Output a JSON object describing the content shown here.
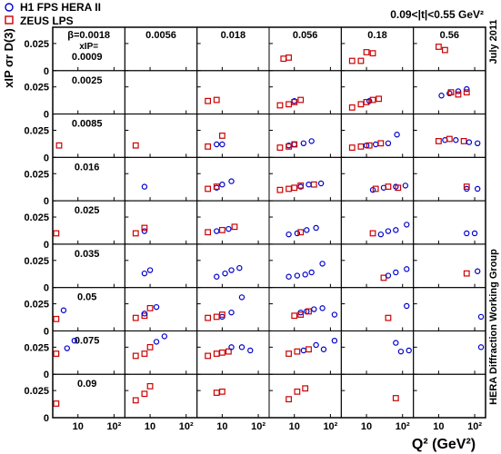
{
  "legend": {
    "items": [
      {
        "label": "H1 FPS HERA II",
        "marker": "circle",
        "color": "#0000cc"
      },
      {
        "label": "ZEUS LPS",
        "marker": "square",
        "color": "#cc0000"
      }
    ]
  },
  "t_range_label": "0.09<|t|<0.55 GeV²",
  "y_axis_title": "xIP σr D(3)",
  "x_axis_title": "Q² (GeV²)",
  "side_labels": {
    "date": "July 2011",
    "group": "HERA Diffraction Working Group"
  },
  "corner_labels": {
    "beta_label": "β=",
    "xip_label": "xIP="
  },
  "chart_data": {
    "type": "scatter",
    "grid": {
      "rows": 9,
      "cols": 6
    },
    "xscale": "log",
    "xlim": [
      2,
      200
    ],
    "ylim": [
      0,
      0.04
    ],
    "xticks": [
      10,
      100
    ],
    "xtick_labels": [
      "10",
      "10²"
    ],
    "yticks": [
      0,
      0.025
    ],
    "ytick_labels": [
      "0",
      "0.025"
    ],
    "beta": [
      "0.0018",
      "0.0056",
      "0.018",
      "0.056",
      "0.18",
      "0.56"
    ],
    "xip": [
      "0.0009",
      "0.0025",
      "0.0085",
      "0.016",
      "0.025",
      "0.035",
      "0.05",
      "0.075",
      "0.09"
    ],
    "series_names": [
      "H1 FPS HERA II",
      "ZEUS LPS"
    ],
    "series_colors": [
      "#0000cc",
      "#cc0000"
    ],
    "points": [
      {
        "r": 0,
        "c": 3,
        "s": 1,
        "x": 5,
        "y": 0.011
      },
      {
        "r": 0,
        "c": 3,
        "s": 1,
        "x": 7,
        "y": 0.012
      },
      {
        "r": 0,
        "c": 4,
        "s": 1,
        "x": 4,
        "y": 0.009
      },
      {
        "r": 0,
        "c": 4,
        "s": 1,
        "x": 7,
        "y": 0.009
      },
      {
        "r": 0,
        "c": 4,
        "s": 1,
        "x": 10,
        "y": 0.017
      },
      {
        "r": 0,
        "c": 4,
        "s": 1,
        "x": 15,
        "y": 0.016
      },
      {
        "r": 0,
        "c": 5,
        "s": 1,
        "x": 10,
        "y": 0.022
      },
      {
        "r": 0,
        "c": 5,
        "s": 1,
        "x": 15,
        "y": 0.019
      },
      {
        "r": 1,
        "c": 2,
        "s": 1,
        "x": 4,
        "y": 0.012
      },
      {
        "r": 1,
        "c": 2,
        "s": 1,
        "x": 7,
        "y": 0.013
      },
      {
        "r": 1,
        "c": 3,
        "s": 1,
        "x": 4,
        "y": 0.008
      },
      {
        "r": 1,
        "c": 3,
        "s": 1,
        "x": 7,
        "y": 0.009
      },
      {
        "r": 1,
        "c": 3,
        "s": 0,
        "x": 10,
        "y": 0.012
      },
      {
        "r": 1,
        "c": 3,
        "s": 1,
        "x": 10,
        "y": 0.011
      },
      {
        "r": 1,
        "c": 3,
        "s": 1,
        "x": 15,
        "y": 0.013
      },
      {
        "r": 1,
        "c": 4,
        "s": 1,
        "x": 4,
        "y": 0.006
      },
      {
        "r": 1,
        "c": 4,
        "s": 1,
        "x": 7,
        "y": 0.009
      },
      {
        "r": 1,
        "c": 4,
        "s": 1,
        "x": 10,
        "y": 0.011
      },
      {
        "r": 1,
        "c": 4,
        "s": 0,
        "x": 12,
        "y": 0.012
      },
      {
        "r": 1,
        "c": 4,
        "s": 1,
        "x": 15,
        "y": 0.013
      },
      {
        "r": 1,
        "c": 4,
        "s": 1,
        "x": 22,
        "y": 0.014
      },
      {
        "r": 1,
        "c": 5,
        "s": 0,
        "x": 12,
        "y": 0.017
      },
      {
        "r": 1,
        "c": 5,
        "s": 0,
        "x": 20,
        "y": 0.019
      },
      {
        "r": 1,
        "c": 5,
        "s": 1,
        "x": 22,
        "y": 0.02
      },
      {
        "r": 1,
        "c": 5,
        "s": 0,
        "x": 35,
        "y": 0.021
      },
      {
        "r": 1,
        "c": 5,
        "s": 1,
        "x": 35,
        "y": 0.018
      },
      {
        "r": 1,
        "c": 5,
        "s": 0,
        "x": 60,
        "y": 0.023
      },
      {
        "r": 1,
        "c": 5,
        "s": 1,
        "x": 60,
        "y": 0.02
      },
      {
        "r": 2,
        "c": 0,
        "s": 1,
        "x": 3,
        "y": 0.011
      },
      {
        "r": 2,
        "c": 1,
        "s": 1,
        "x": 4,
        "y": 0.011
      },
      {
        "r": 2,
        "c": 2,
        "s": 1,
        "x": 4,
        "y": 0.01
      },
      {
        "r": 2,
        "c": 2,
        "s": 0,
        "x": 7,
        "y": 0.012
      },
      {
        "r": 2,
        "c": 2,
        "s": 1,
        "x": 10,
        "y": 0.02
      },
      {
        "r": 2,
        "c": 2,
        "s": 0,
        "x": 10,
        "y": 0.012
      },
      {
        "r": 2,
        "c": 3,
        "s": 1,
        "x": 4,
        "y": 0.009
      },
      {
        "r": 2,
        "c": 3,
        "s": 0,
        "x": 7,
        "y": 0.011
      },
      {
        "r": 2,
        "c": 3,
        "s": 1,
        "x": 7,
        "y": 0.01
      },
      {
        "r": 2,
        "c": 3,
        "s": 0,
        "x": 10,
        "y": 0.012
      },
      {
        "r": 2,
        "c": 3,
        "s": 1,
        "x": 10,
        "y": 0.012
      },
      {
        "r": 2,
        "c": 3,
        "s": 0,
        "x": 18,
        "y": 0.013
      },
      {
        "r": 2,
        "c": 3,
        "s": 0,
        "x": 30,
        "y": 0.015
      },
      {
        "r": 2,
        "c": 4,
        "s": 1,
        "x": 4,
        "y": 0.009
      },
      {
        "r": 2,
        "c": 4,
        "s": 1,
        "x": 7,
        "y": 0.01
      },
      {
        "r": 2,
        "c": 4,
        "s": 0,
        "x": 10,
        "y": 0.011
      },
      {
        "r": 2,
        "c": 4,
        "s": 1,
        "x": 12,
        "y": 0.011
      },
      {
        "r": 2,
        "c": 4,
        "s": 0,
        "x": 18,
        "y": 0.012
      },
      {
        "r": 2,
        "c": 4,
        "s": 1,
        "x": 25,
        "y": 0.013
      },
      {
        "r": 2,
        "c": 4,
        "s": 0,
        "x": 40,
        "y": 0.013
      },
      {
        "r": 2,
        "c": 4,
        "s": 0,
        "x": 70,
        "y": 0.021
      },
      {
        "r": 2,
        "c": 5,
        "s": 1,
        "x": 10,
        "y": 0.015
      },
      {
        "r": 2,
        "c": 5,
        "s": 0,
        "x": 15,
        "y": 0.016
      },
      {
        "r": 2,
        "c": 5,
        "s": 1,
        "x": 20,
        "y": 0.017
      },
      {
        "r": 2,
        "c": 5,
        "s": 0,
        "x": 30,
        "y": 0.016
      },
      {
        "r": 2,
        "c": 5,
        "s": 1,
        "x": 50,
        "y": 0.015
      },
      {
        "r": 2,
        "c": 5,
        "s": 0,
        "x": 70,
        "y": 0.014
      },
      {
        "r": 2,
        "c": 5,
        "s": 0,
        "x": 120,
        "y": 0.013
      },
      {
        "r": 3,
        "c": 1,
        "s": 0,
        "x": 7,
        "y": 0.013
      },
      {
        "r": 3,
        "c": 2,
        "s": 1,
        "x": 4,
        "y": 0.011
      },
      {
        "r": 3,
        "c": 2,
        "s": 0,
        "x": 7,
        "y": 0.012
      },
      {
        "r": 3,
        "c": 2,
        "s": 1,
        "x": 7,
        "y": 0.013
      },
      {
        "r": 3,
        "c": 2,
        "s": 0,
        "x": 10,
        "y": 0.015
      },
      {
        "r": 3,
        "c": 2,
        "s": 0,
        "x": 18,
        "y": 0.018
      },
      {
        "r": 3,
        "c": 3,
        "s": 1,
        "x": 4,
        "y": 0.01
      },
      {
        "r": 3,
        "c": 3,
        "s": 1,
        "x": 7,
        "y": 0.011
      },
      {
        "r": 3,
        "c": 3,
        "s": 1,
        "x": 10,
        "y": 0.012
      },
      {
        "r": 3,
        "c": 3,
        "s": 0,
        "x": 15,
        "y": 0.013
      },
      {
        "r": 3,
        "c": 3,
        "s": 1,
        "x": 15,
        "y": 0.014
      },
      {
        "r": 3,
        "c": 3,
        "s": 0,
        "x": 25,
        "y": 0.015
      },
      {
        "r": 3,
        "c": 3,
        "s": 1,
        "x": 35,
        "y": 0.015
      },
      {
        "r": 3,
        "c": 3,
        "s": 0,
        "x": 55,
        "y": 0.016
      },
      {
        "r": 3,
        "c": 4,
        "s": 0,
        "x": 15,
        "y": 0.01
      },
      {
        "r": 3,
        "c": 4,
        "s": 1,
        "x": 18,
        "y": 0.011
      },
      {
        "r": 3,
        "c": 4,
        "s": 0,
        "x": 30,
        "y": 0.012
      },
      {
        "r": 3,
        "c": 4,
        "s": 1,
        "x": 40,
        "y": 0.013
      },
      {
        "r": 3,
        "c": 4,
        "s": 0,
        "x": 65,
        "y": 0.013
      },
      {
        "r": 3,
        "c": 4,
        "s": 1,
        "x": 75,
        "y": 0.012
      },
      {
        "r": 3,
        "c": 4,
        "s": 0,
        "x": 120,
        "y": 0.014
      },
      {
        "r": 3,
        "c": 5,
        "s": 0,
        "x": 60,
        "y": 0.011
      },
      {
        "r": 3,
        "c": 5,
        "s": 1,
        "x": 60,
        "y": 0.013
      },
      {
        "r": 3,
        "c": 5,
        "s": 0,
        "x": 120,
        "y": 0.011
      },
      {
        "r": 4,
        "c": 0,
        "s": 1,
        "x": 2.5,
        "y": 0.01
      },
      {
        "r": 4,
        "c": 1,
        "s": 1,
        "x": 4,
        "y": 0.01
      },
      {
        "r": 4,
        "c": 1,
        "s": 0,
        "x": 7,
        "y": 0.012
      },
      {
        "r": 4,
        "c": 1,
        "s": 1,
        "x": 7,
        "y": 0.015
      },
      {
        "r": 4,
        "c": 2,
        "s": 1,
        "x": 4,
        "y": 0.011
      },
      {
        "r": 4,
        "c": 2,
        "s": 0,
        "x": 7,
        "y": 0.012
      },
      {
        "r": 4,
        "c": 2,
        "s": 1,
        "x": 10,
        "y": 0.013
      },
      {
        "r": 4,
        "c": 2,
        "s": 0,
        "x": 15,
        "y": 0.014
      },
      {
        "r": 4,
        "c": 2,
        "s": 1,
        "x": 22,
        "y": 0.016
      },
      {
        "r": 4,
        "c": 3,
        "s": 0,
        "x": 7,
        "y": 0.009
      },
      {
        "r": 4,
        "c": 3,
        "s": 0,
        "x": 12,
        "y": 0.01
      },
      {
        "r": 4,
        "c": 3,
        "s": 1,
        "x": 15,
        "y": 0.011
      },
      {
        "r": 4,
        "c": 3,
        "s": 0,
        "x": 22,
        "y": 0.013
      },
      {
        "r": 4,
        "c": 3,
        "s": 0,
        "x": 40,
        "y": 0.015
      },
      {
        "r": 4,
        "c": 4,
        "s": 1,
        "x": 15,
        "y": 0.01
      },
      {
        "r": 4,
        "c": 4,
        "s": 0,
        "x": 25,
        "y": 0.009
      },
      {
        "r": 4,
        "c": 4,
        "s": 0,
        "x": 40,
        "y": 0.012
      },
      {
        "r": 4,
        "c": 4,
        "s": 0,
        "x": 65,
        "y": 0.013
      },
      {
        "r": 4,
        "c": 4,
        "s": 0,
        "x": 130,
        "y": 0.018
      },
      {
        "r": 4,
        "c": 5,
        "s": 0,
        "x": 60,
        "y": 0.01
      },
      {
        "r": 4,
        "c": 5,
        "s": 0,
        "x": 100,
        "y": 0.01
      },
      {
        "r": 5,
        "c": 1,
        "s": 0,
        "x": 7,
        "y": 0.013
      },
      {
        "r": 5,
        "c": 1,
        "s": 0,
        "x": 10,
        "y": 0.016
      },
      {
        "r": 5,
        "c": 2,
        "s": 0,
        "x": 7,
        "y": 0.01
      },
      {
        "r": 5,
        "c": 2,
        "s": 0,
        "x": 12,
        "y": 0.013
      },
      {
        "r": 5,
        "c": 2,
        "s": 0,
        "x": 18,
        "y": 0.016
      },
      {
        "r": 5,
        "c": 2,
        "s": 0,
        "x": 30,
        "y": 0.018
      },
      {
        "r": 5,
        "c": 3,
        "s": 0,
        "x": 7,
        "y": 0.01
      },
      {
        "r": 5,
        "c": 3,
        "s": 0,
        "x": 12,
        "y": 0.011
      },
      {
        "r": 5,
        "c": 3,
        "s": 0,
        "x": 20,
        "y": 0.012
      },
      {
        "r": 5,
        "c": 3,
        "s": 0,
        "x": 30,
        "y": 0.014
      },
      {
        "r": 5,
        "c": 3,
        "s": 0,
        "x": 60,
        "y": 0.022
      },
      {
        "r": 5,
        "c": 4,
        "s": 1,
        "x": 30,
        "y": 0.009
      },
      {
        "r": 5,
        "c": 4,
        "s": 0,
        "x": 40,
        "y": 0.011
      },
      {
        "r": 5,
        "c": 4,
        "s": 0,
        "x": 65,
        "y": 0.014
      },
      {
        "r": 5,
        "c": 4,
        "s": 0,
        "x": 130,
        "y": 0.017
      },
      {
        "r": 5,
        "c": 5,
        "s": 1,
        "x": 60,
        "y": 0.013
      },
      {
        "r": 5,
        "c": 5,
        "s": 0,
        "x": 120,
        "y": 0.015
      },
      {
        "r": 6,
        "c": 0,
        "s": 1,
        "x": 2.5,
        "y": 0.011
      },
      {
        "r": 6,
        "c": 0,
        "s": 0,
        "x": 4,
        "y": 0.019
      },
      {
        "r": 6,
        "c": 1,
        "s": 1,
        "x": 4,
        "y": 0.012
      },
      {
        "r": 6,
        "c": 1,
        "s": 1,
        "x": 7,
        "y": 0.014
      },
      {
        "r": 6,
        "c": 1,
        "s": 0,
        "x": 7,
        "y": 0.016
      },
      {
        "r": 6,
        "c": 1,
        "s": 1,
        "x": 10,
        "y": 0.021
      },
      {
        "r": 6,
        "c": 1,
        "s": 0,
        "x": 15,
        "y": 0.022
      },
      {
        "r": 6,
        "c": 2,
        "s": 1,
        "x": 4,
        "y": 0.012
      },
      {
        "r": 6,
        "c": 2,
        "s": 1,
        "x": 7,
        "y": 0.013
      },
      {
        "r": 6,
        "c": 2,
        "s": 0,
        "x": 10,
        "y": 0.013
      },
      {
        "r": 6,
        "c": 2,
        "s": 1,
        "x": 10,
        "y": 0.015
      },
      {
        "r": 6,
        "c": 2,
        "s": 0,
        "x": 18,
        "y": 0.017
      },
      {
        "r": 6,
        "c": 2,
        "s": 0,
        "x": 35,
        "y": 0.031
      },
      {
        "r": 6,
        "c": 3,
        "s": 1,
        "x": 10,
        "y": 0.014
      },
      {
        "r": 6,
        "c": 3,
        "s": 0,
        "x": 15,
        "y": 0.017
      },
      {
        "r": 6,
        "c": 3,
        "s": 1,
        "x": 15,
        "y": 0.015
      },
      {
        "r": 6,
        "c": 3,
        "s": 0,
        "x": 22,
        "y": 0.018
      },
      {
        "r": 6,
        "c": 3,
        "s": 1,
        "x": 25,
        "y": 0.018
      },
      {
        "r": 6,
        "c": 3,
        "s": 0,
        "x": 35,
        "y": 0.02
      },
      {
        "r": 6,
        "c": 3,
        "s": 0,
        "x": 60,
        "y": 0.021
      },
      {
        "r": 6,
        "c": 3,
        "s": 0,
        "x": 130,
        "y": 0.015
      },
      {
        "r": 6,
        "c": 4,
        "s": 1,
        "x": 40,
        "y": 0.012
      },
      {
        "r": 6,
        "c": 4,
        "s": 0,
        "x": 130,
        "y": 0.023
      },
      {
        "r": 6,
        "c": 5,
        "s": 0,
        "x": 150,
        "y": 0.013
      },
      {
        "r": 7,
        "c": 0,
        "s": 1,
        "x": 2.5,
        "y": 0.019
      },
      {
        "r": 7,
        "c": 0,
        "s": 0,
        "x": 5,
        "y": 0.024
      },
      {
        "r": 7,
        "c": 0,
        "s": 0,
        "x": 8,
        "y": 0.031
      },
      {
        "r": 7,
        "c": 1,
        "s": 1,
        "x": 4,
        "y": 0.017
      },
      {
        "r": 7,
        "c": 1,
        "s": 1,
        "x": 7,
        "y": 0.019
      },
      {
        "r": 7,
        "c": 1,
        "s": 1,
        "x": 10,
        "y": 0.025
      },
      {
        "r": 7,
        "c": 1,
        "s": 0,
        "x": 15,
        "y": 0.03
      },
      {
        "r": 7,
        "c": 1,
        "s": 0,
        "x": 25,
        "y": 0.035
      },
      {
        "r": 7,
        "c": 2,
        "s": 1,
        "x": 4,
        "y": 0.017
      },
      {
        "r": 7,
        "c": 2,
        "s": 1,
        "x": 7,
        "y": 0.019
      },
      {
        "r": 7,
        "c": 2,
        "s": 1,
        "x": 10,
        "y": 0.02
      },
      {
        "r": 7,
        "c": 2,
        "s": 1,
        "x": 15,
        "y": 0.021
      },
      {
        "r": 7,
        "c": 2,
        "s": 0,
        "x": 18,
        "y": 0.025
      },
      {
        "r": 7,
        "c": 2,
        "s": 0,
        "x": 35,
        "y": 0.025
      },
      {
        "r": 7,
        "c": 2,
        "s": 0,
        "x": 60,
        "y": 0.022
      },
      {
        "r": 7,
        "c": 3,
        "s": 1,
        "x": 7,
        "y": 0.019
      },
      {
        "r": 7,
        "c": 3,
        "s": 1,
        "x": 12,
        "y": 0.021
      },
      {
        "r": 7,
        "c": 3,
        "s": 0,
        "x": 18,
        "y": 0.022
      },
      {
        "r": 7,
        "c": 3,
        "s": 1,
        "x": 25,
        "y": 0.023
      },
      {
        "r": 7,
        "c": 3,
        "s": 0,
        "x": 40,
        "y": 0.027
      },
      {
        "r": 7,
        "c": 3,
        "s": 0,
        "x": 65,
        "y": 0.023
      },
      {
        "r": 7,
        "c": 3,
        "s": 0,
        "x": 130,
        "y": 0.031
      },
      {
        "r": 7,
        "c": 4,
        "s": 0,
        "x": 65,
        "y": 0.029
      },
      {
        "r": 7,
        "c": 4,
        "s": 0,
        "x": 90,
        "y": 0.021
      },
      {
        "r": 7,
        "c": 4,
        "s": 0,
        "x": 150,
        "y": 0.022
      },
      {
        "r": 7,
        "c": 5,
        "s": 0,
        "x": 150,
        "y": 0.025
      },
      {
        "r": 8,
        "c": 0,
        "s": 1,
        "x": 2.5,
        "y": 0.013
      },
      {
        "r": 8,
        "c": 1,
        "s": 1,
        "x": 4,
        "y": 0.016
      },
      {
        "r": 8,
        "c": 1,
        "s": 1,
        "x": 7,
        "y": 0.022
      },
      {
        "r": 8,
        "c": 1,
        "s": 1,
        "x": 10,
        "y": 0.029
      },
      {
        "r": 8,
        "c": 2,
        "s": 1,
        "x": 7,
        "y": 0.023
      },
      {
        "r": 8,
        "c": 2,
        "s": 1,
        "x": 10,
        "y": 0.024
      },
      {
        "r": 8,
        "c": 3,
        "s": 1,
        "x": 7,
        "y": 0.017
      },
      {
        "r": 8,
        "c": 3,
        "s": 1,
        "x": 12,
        "y": 0.024
      },
      {
        "r": 8,
        "c": 3,
        "s": 1,
        "x": 20,
        "y": 0.027
      },
      {
        "r": 8,
        "c": 4,
        "s": 1,
        "x": 65,
        "y": 0.018
      }
    ]
  }
}
